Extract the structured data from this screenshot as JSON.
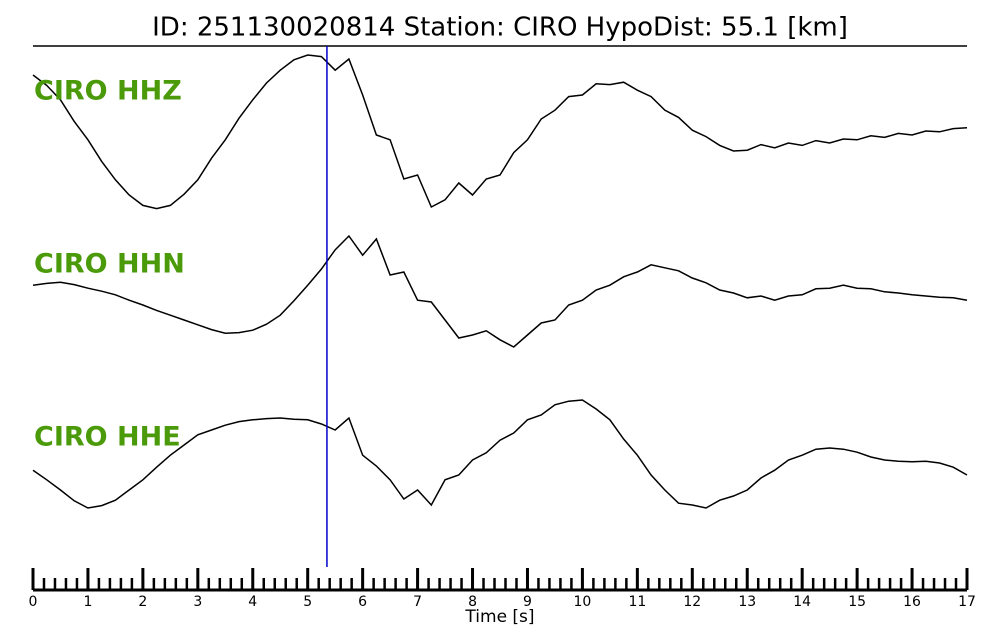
{
  "chart_data": {
    "type": "line",
    "title": "ID: 251130020814   Station: CIRO   HypoDist:     55.1 [km]",
    "xlabel": "Time [s]",
    "xlim": [
      0,
      17
    ],
    "xticks": [
      0,
      1,
      2,
      3,
      4,
      5,
      6,
      7,
      8,
      9,
      10,
      11,
      12,
      13,
      14,
      15,
      16,
      17
    ],
    "xminor_step": 0.2,
    "ylim": [
      -1,
      1
    ],
    "pick": 5.35,
    "pick_color": "#0000cc",
    "label_color": "#4a9a0a",
    "x": [
      0,
      0.25,
      0.5,
      0.75,
      1,
      1.25,
      1.5,
      1.75,
      2,
      2.25,
      2.5,
      2.75,
      3,
      3.25,
      3.5,
      3.75,
      4,
      4.25,
      4.5,
      4.75,
      5,
      5.25,
      5.5,
      5.75,
      6,
      6.25,
      6.5,
      6.75,
      7,
      7.25,
      7.5,
      7.75,
      8,
      8.25,
      8.5,
      8.75,
      9,
      9.25,
      9.5,
      9.75,
      10,
      10.25,
      10.5,
      10.75,
      11,
      11.25,
      11.5,
      11.75,
      12,
      12.25,
      12.5,
      12.75,
      13,
      13.25,
      13.5,
      13.75,
      14,
      14.25,
      14.5,
      14.75,
      15,
      15.25,
      15.5,
      15.75,
      16,
      16.25,
      16.5,
      16.75,
      17
    ],
    "series": [
      {
        "name": "CIRO HHZ",
        "color": "#000000",
        "values": [
          0.75,
          0.62,
          0.44,
          0.17,
          -0.06,
          -0.33,
          -0.56,
          -0.75,
          -0.88,
          -0.92,
          -0.88,
          -0.74,
          -0.56,
          -0.29,
          -0.06,
          0.21,
          0.44,
          0.65,
          0.81,
          0.94,
          1.0,
          0.98,
          0.81,
          0.95,
          0.5,
          0.0,
          -0.06,
          -0.55,
          -0.5,
          -0.9,
          -0.81,
          -0.6,
          -0.75,
          -0.55,
          -0.5,
          -0.22,
          -0.06,
          0.2,
          0.31,
          0.48,
          0.5,
          0.64,
          0.63,
          0.66,
          0.56,
          0.48,
          0.31,
          0.22,
          0.06,
          -0.02,
          -0.13,
          -0.2,
          -0.19,
          -0.12,
          -0.16,
          -0.1,
          -0.13,
          -0.07,
          -0.1,
          -0.05,
          -0.06,
          -0.01,
          -0.03,
          0.02,
          0,
          0.05,
          0.04,
          0.08,
          0.09
        ]
      },
      {
        "name": "CIRO HHN",
        "color": "#000000",
        "values": [
          0.08,
          0.11,
          0.13,
          0.09,
          0.03,
          -0.02,
          -0.08,
          -0.17,
          -0.25,
          -0.34,
          -0.42,
          -0.5,
          -0.58,
          -0.66,
          -0.72,
          -0.71,
          -0.67,
          -0.57,
          -0.42,
          -0.18,
          0.08,
          0.35,
          0.67,
          0.9,
          0.58,
          0.85,
          0.25,
          0.3,
          -0.17,
          -0.2,
          -0.5,
          -0.8,
          -0.75,
          -0.68,
          -0.83,
          -0.95,
          -0.75,
          -0.55,
          -0.5,
          -0.25,
          -0.17,
          0.0,
          0.08,
          0.22,
          0.3,
          0.42,
          0.37,
          0.32,
          0.2,
          0.12,
          0,
          -0.05,
          -0.13,
          -0.1,
          -0.17,
          -0.1,
          -0.08,
          0.02,
          0.03,
          0.08,
          0.03,
          0.02,
          -0.03,
          -0.05,
          -0.08,
          -0.1,
          -0.12,
          -0.13,
          -0.17
        ]
      },
      {
        "name": "CIRO HHE",
        "color": "#000000",
        "values": [
          -0.17,
          -0.33,
          -0.5,
          -0.68,
          -0.8,
          -0.76,
          -0.67,
          -0.5,
          -0.33,
          -0.12,
          0.08,
          0.25,
          0.42,
          0.5,
          0.58,
          0.64,
          0.67,
          0.69,
          0.7,
          0.68,
          0.67,
          0.6,
          0.5,
          0.7,
          0.08,
          -0.1,
          -0.33,
          -0.65,
          -0.5,
          -0.75,
          -0.33,
          -0.25,
          0,
          0.12,
          0.33,
          0.45,
          0.67,
          0.75,
          0.92,
          0.98,
          1.0,
          0.85,
          0.67,
          0.35,
          0.08,
          -0.25,
          -0.5,
          -0.72,
          -0.75,
          -0.8,
          -0.67,
          -0.6,
          -0.5,
          -0.3,
          -0.17,
          0.0,
          0.08,
          0.18,
          0.2,
          0.18,
          0.13,
          0.05,
          0,
          -0.02,
          -0.03,
          -0.02,
          -0.05,
          -0.12,
          -0.25
        ]
      }
    ]
  }
}
